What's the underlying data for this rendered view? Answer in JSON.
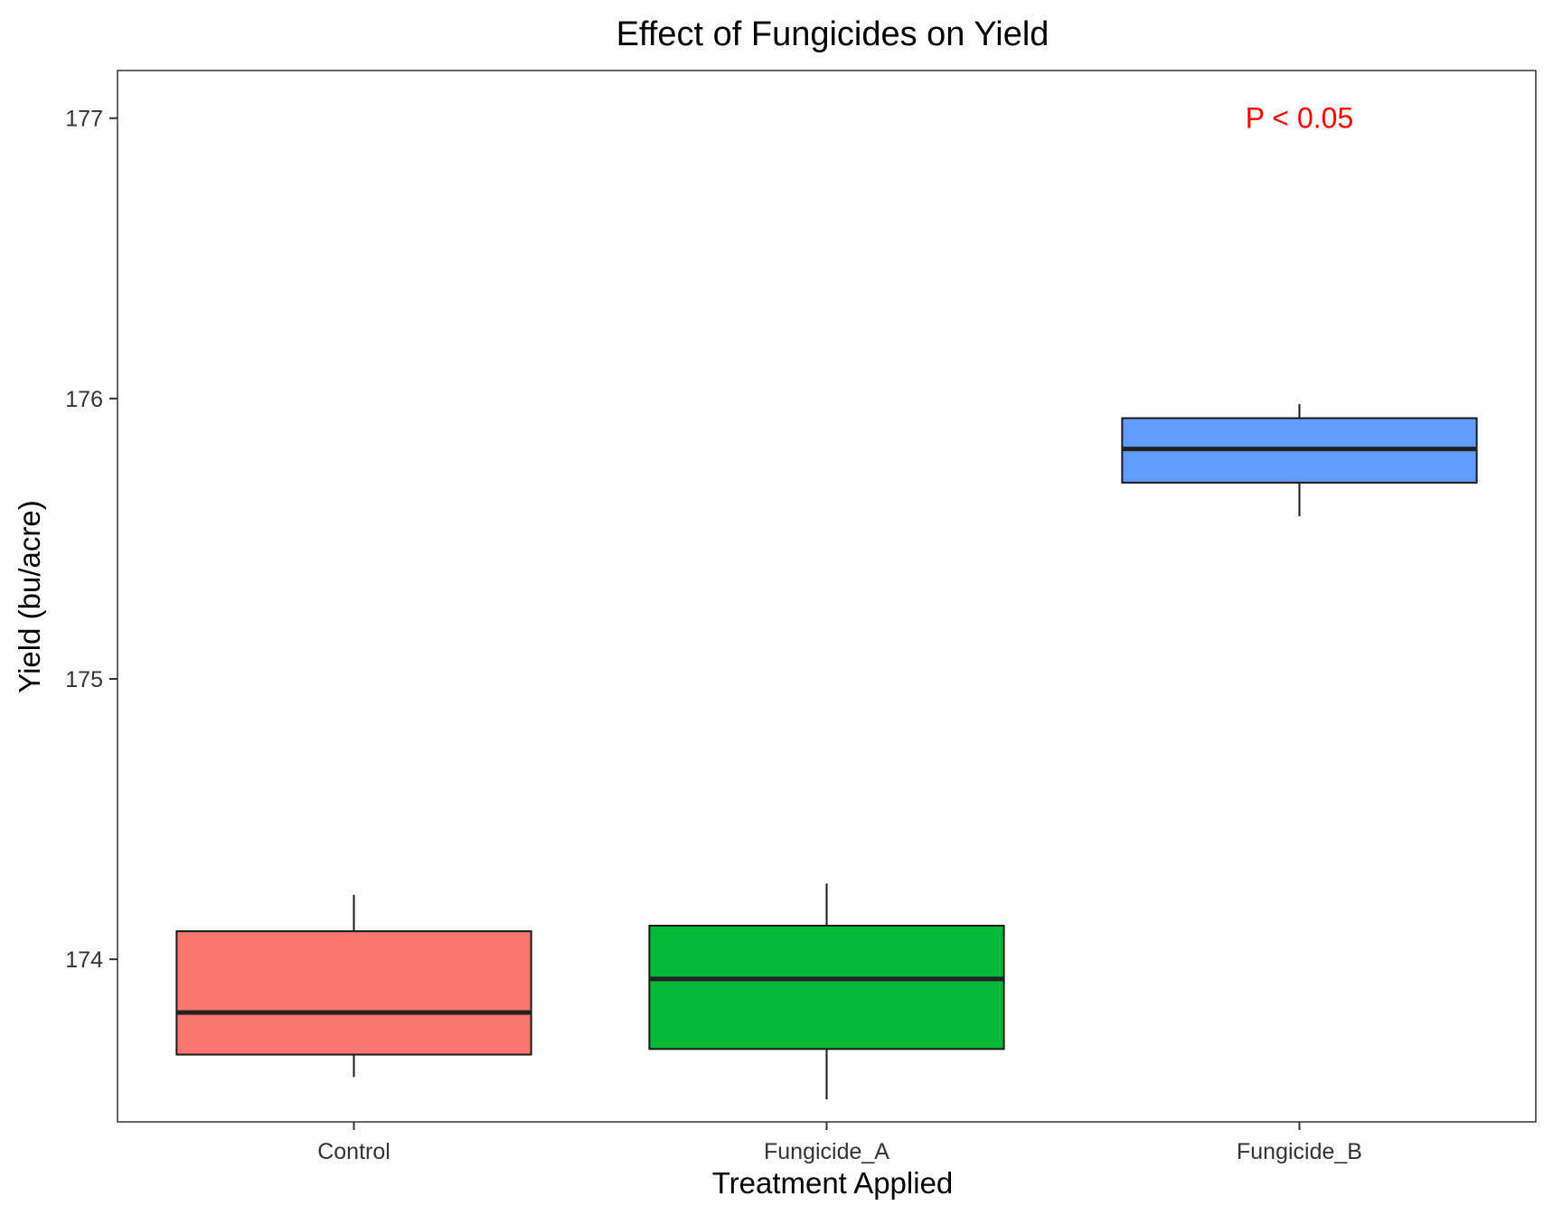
{
  "chart_data": {
    "type": "boxplot",
    "title": "Effect of Fungicides on Yield",
    "xlabel": "Treatment Applied",
    "ylabel": "Yield (bu/acre)",
    "categories": [
      "Control",
      "Fungicide_A",
      "Fungicide_B"
    ],
    "boxes": [
      {
        "category": "Control",
        "min": 173.58,
        "q1": 173.66,
        "median": 173.81,
        "q3": 174.1,
        "max": 174.23,
        "color": "#F8766D"
      },
      {
        "category": "Fungicide_A",
        "min": 173.5,
        "q1": 173.68,
        "median": 173.93,
        "q3": 174.12,
        "max": 174.27,
        "color": "#00BA38"
      },
      {
        "category": "Fungicide_B",
        "min": 175.58,
        "q1": 175.7,
        "median": 175.82,
        "q3": 175.93,
        "max": 175.98,
        "color": "#619CFF"
      }
    ],
    "yticks": [
      174,
      175,
      176,
      177
    ],
    "ylim": [
      173.42,
      177.17
    ],
    "grid": false,
    "annotation": {
      "text": "P < 0.05",
      "x": "Fungicide_B",
      "y": 177.0,
      "color": "#FF0000"
    }
  }
}
